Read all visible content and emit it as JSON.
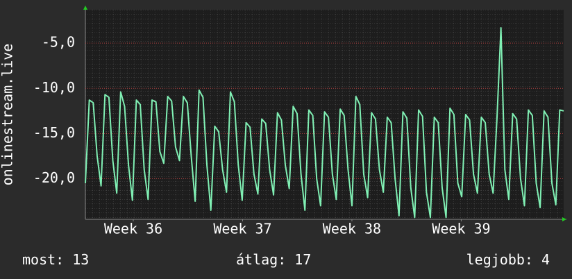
{
  "chart_data": {
    "type": "line",
    "ylabel": "onlinestream.live",
    "xlim": [
      36.062,
      40.437
    ],
    "xticks": [
      {
        "value": 36.5,
        "label": "Week 36"
      },
      {
        "value": 37.5,
        "label": "Week 37"
      },
      {
        "value": 38.5,
        "label": "Week 38"
      },
      {
        "value": 39.5,
        "label": "Week 39"
      }
    ],
    "ylim": [
      -24.5,
      -1.3
    ],
    "yticks": [
      {
        "value": -5,
        "label": "-5,0"
      },
      {
        "value": -10,
        "label": "-10,0"
      },
      {
        "value": -15,
        "label": "-15,0"
      },
      {
        "value": -20,
        "label": "-20,0"
      }
    ],
    "grid": true,
    "series": [
      {
        "color": "#80f0b4",
        "values": [
          -20.5,
          -11.3,
          -11.6,
          -17.5,
          -20.8,
          -10.7,
          -11.0,
          -18.0,
          -21.6,
          -10.4,
          -12.0,
          -18.5,
          -22.4,
          -11.3,
          -11.8,
          -19.0,
          -22.3,
          -11.3,
          -11.5,
          -17.0,
          -18.3,
          -10.9,
          -11.4,
          -16.5,
          -18.0,
          -10.9,
          -11.6,
          -17.5,
          -22.5,
          -10.2,
          -11.0,
          -18.5,
          -23.5,
          -14.2,
          -14.8,
          -19.0,
          -21.5,
          -10.4,
          -11.5,
          -18.5,
          -22.4,
          -13.8,
          -14.3,
          -19.5,
          -21.7,
          -13.4,
          -13.9,
          -19.0,
          -21.8,
          -12.7,
          -13.5,
          -18.5,
          -21.1,
          -12.0,
          -12.8,
          -19.5,
          -23.5,
          -12.4,
          -13.0,
          -20.0,
          -23.0,
          -12.6,
          -13.2,
          -19.5,
          -22.3,
          -12.3,
          -13.0,
          -19.0,
          -23.0,
          -10.9,
          -11.8,
          -19.5,
          -22.1,
          -12.7,
          -13.4,
          -19.0,
          -21.5,
          -13.2,
          -13.8,
          -20.0,
          -24.1,
          -12.6,
          -13.3,
          -21.0,
          -24.3,
          -12.4,
          -13.1,
          -21.5,
          -24.3,
          -13.2,
          -13.8,
          -21.0,
          -24.3,
          -12.2,
          -12.9,
          -20.5,
          -22.0,
          -12.9,
          -13.5,
          -19.5,
          -21.6,
          -13.2,
          -13.8,
          -19.5,
          -21.6,
          -13.2,
          -3.3,
          -19.0,
          -22.3,
          -12.8,
          -13.4,
          -20.0,
          -23.0,
          -12.4,
          -13.0,
          -20.5,
          -23.2,
          -12.5,
          -13.2,
          -20.5,
          -22.9,
          -12.4,
          -12.5
        ]
      }
    ],
    "stats": [
      {
        "label": "most:",
        "value": 13
      },
      {
        "label": "átlag:",
        "value": 17
      },
      {
        "label": "legjobb:",
        "value": 4
      }
    ]
  }
}
